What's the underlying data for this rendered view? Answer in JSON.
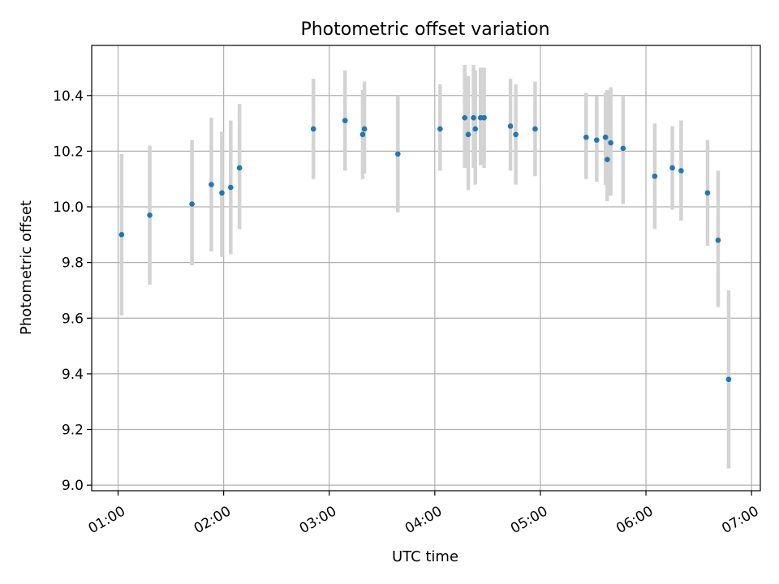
{
  "chart_data": {
    "type": "scatter",
    "title": "Photometric offset variation",
    "xlabel": "UTC time",
    "ylabel": "Photometric offset",
    "x_ticks": [
      "01:00",
      "02:00",
      "03:00",
      "04:00",
      "05:00",
      "06:00",
      "07:00"
    ],
    "y_ticks": [
      "9.0",
      "9.2",
      "9.4",
      "9.6",
      "9.8",
      "10.0",
      "10.2",
      "10.4"
    ],
    "xlim": [
      "00:45",
      "07:05"
    ],
    "ylim": [
      8.98,
      10.58
    ],
    "grid": true,
    "marker_color": "#1f77b4",
    "errorbar_color": "#d3d3d3",
    "points": [
      {
        "time": "01:02",
        "y": 9.9,
        "lo": 9.61,
        "hi": 10.19
      },
      {
        "time": "01:18",
        "y": 9.97,
        "lo": 9.72,
        "hi": 10.22
      },
      {
        "time": "01:42",
        "y": 10.01,
        "lo": 9.79,
        "hi": 10.24
      },
      {
        "time": "01:53",
        "y": 10.08,
        "lo": 9.84,
        "hi": 10.32
      },
      {
        "time": "01:59",
        "y": 10.05,
        "lo": 9.82,
        "hi": 10.27
      },
      {
        "time": "02:04",
        "y": 10.07,
        "lo": 9.83,
        "hi": 10.31
      },
      {
        "time": "02:09",
        "y": 10.14,
        "lo": 9.92,
        "hi": 10.37
      },
      {
        "time": "02:51",
        "y": 10.28,
        "lo": 10.1,
        "hi": 10.46
      },
      {
        "time": "03:09",
        "y": 10.31,
        "lo": 10.13,
        "hi": 10.49
      },
      {
        "time": "03:19",
        "y": 10.26,
        "lo": 10.1,
        "hi": 10.42
      },
      {
        "time": "03:20",
        "y": 10.28,
        "lo": 10.12,
        "hi": 10.45
      },
      {
        "time": "03:39",
        "y": 10.19,
        "lo": 9.98,
        "hi": 10.4
      },
      {
        "time": "04:03",
        "y": 10.28,
        "lo": 10.13,
        "hi": 10.44
      },
      {
        "time": "04:17",
        "y": 10.32,
        "lo": 10.14,
        "hi": 10.51
      },
      {
        "time": "04:19",
        "y": 10.26,
        "lo": 10.06,
        "hi": 10.47
      },
      {
        "time": "04:22",
        "y": 10.32,
        "lo": 10.14,
        "hi": 10.51
      },
      {
        "time": "04:23",
        "y": 10.28,
        "lo": 10.08,
        "hi": 10.49
      },
      {
        "time": "04:26",
        "y": 10.32,
        "lo": 10.15,
        "hi": 10.5
      },
      {
        "time": "04:28",
        "y": 10.32,
        "lo": 10.14,
        "hi": 10.5
      },
      {
        "time": "04:43",
        "y": 10.29,
        "lo": 10.13,
        "hi": 10.46
      },
      {
        "time": "04:46",
        "y": 10.26,
        "lo": 10.08,
        "hi": 10.44
      },
      {
        "time": "04:57",
        "y": 10.28,
        "lo": 10.11,
        "hi": 10.45
      },
      {
        "time": "05:26",
        "y": 10.25,
        "lo": 10.1,
        "hi": 10.41
      },
      {
        "time": "05:32",
        "y": 10.24,
        "lo": 10.09,
        "hi": 10.4
      },
      {
        "time": "05:37",
        "y": 10.25,
        "lo": 10.08,
        "hi": 10.41
      },
      {
        "time": "05:38",
        "y": 10.17,
        "lo": 10.02,
        "hi": 10.42
      },
      {
        "time": "05:40",
        "y": 10.23,
        "lo": 10.04,
        "hi": 10.43
      },
      {
        "time": "05:47",
        "y": 10.21,
        "lo": 10.01,
        "hi": 10.4
      },
      {
        "time": "06:05",
        "y": 10.11,
        "lo": 9.92,
        "hi": 10.3
      },
      {
        "time": "06:15",
        "y": 10.14,
        "lo": 9.99,
        "hi": 10.29
      },
      {
        "time": "06:20",
        "y": 10.13,
        "lo": 9.95,
        "hi": 10.31
      },
      {
        "time": "06:35",
        "y": 10.05,
        "lo": 9.86,
        "hi": 10.24
      },
      {
        "time": "06:41",
        "y": 9.88,
        "lo": 9.64,
        "hi": 10.13
      },
      {
        "time": "06:47",
        "y": 9.38,
        "lo": 9.06,
        "hi": 9.7
      }
    ]
  }
}
